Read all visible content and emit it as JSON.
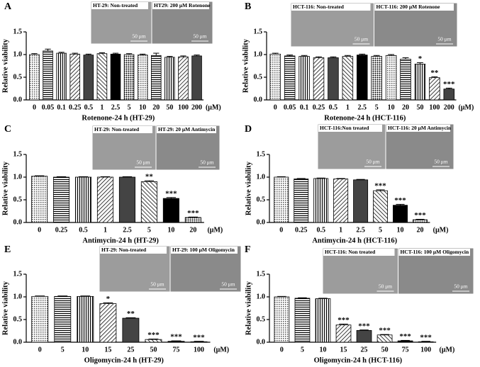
{
  "chart_data": [
    {
      "type": "bar",
      "label": "A",
      "xlabel": "Rotenone-24 h (HT-29)",
      "ylabel": "Relative viability",
      "x_unit": "(μM)",
      "categories": [
        "0",
        "0.05",
        "0.1",
        "0.25",
        "0.5",
        "1",
        "2.5",
        "5",
        "10",
        "20",
        "50",
        "100",
        "200"
      ],
      "values": [
        1.0,
        1.08,
        1.03,
        1.01,
        0.99,
        1.02,
        1.01,
        1.0,
        0.99,
        0.98,
        0.94,
        0.95,
        0.97
      ],
      "errors": [
        0.02,
        0.04,
        0.02,
        0.02,
        0.02,
        0.02,
        0.02,
        0.02,
        0.02,
        0.05,
        0.02,
        0.02,
        0.02
      ],
      "significance": [
        null,
        null,
        null,
        null,
        null,
        null,
        null,
        null,
        null,
        null,
        null,
        null,
        null
      ],
      "color": "#000000",
      "ylim": [
        0,
        1.5
      ],
      "yticks": [
        {
          "value": 0,
          "label": "0.0"
        },
        0.5,
        {
          "value": 1,
          "label": "1.0"
        },
        1.5
      ],
      "insets": [
        {
          "caption": "HT-29: Non-treated",
          "scale": "50 μm"
        },
        {
          "caption": "HT29: 200 μM Rotenone",
          "scale": "50 μm"
        }
      ]
    },
    {
      "type": "bar",
      "label": "B",
      "xlabel": "Rotenone-24 h (HCT-116)",
      "ylabel": "Relative viability",
      "x_unit": "(μM)",
      "categories": [
        "0",
        "0.05",
        "0.1",
        "0.25",
        "0.5",
        "1",
        "2.5",
        "5",
        "10",
        "20",
        "50",
        "100",
        "200"
      ],
      "values": [
        1.01,
        0.97,
        0.96,
        0.93,
        0.93,
        0.96,
        0.99,
        0.96,
        0.98,
        0.9,
        0.79,
        0.49,
        0.24
      ],
      "errors": [
        0.02,
        0.02,
        0.02,
        0.02,
        0.02,
        0.02,
        0.02,
        0.02,
        0.02,
        0.03,
        0.03,
        0.02,
        0.02
      ],
      "significance": [
        null,
        null,
        null,
        null,
        null,
        null,
        null,
        null,
        null,
        null,
        "*",
        "**",
        "***"
      ],
      "color": "#000000",
      "ylim": [
        0,
        1.5
      ],
      "yticks": [
        {
          "value": 0,
          "label": "0.0"
        },
        0.5,
        {
          "value": 1,
          "label": "1.0"
        },
        1.5
      ],
      "insets": [
        {
          "caption": "HCT-116: Non-treated",
          "scale": "50 μm"
        },
        {
          "caption": "HCT-116: 200 μM Rotenone",
          "scale": "50 μm"
        }
      ]
    },
    {
      "type": "bar",
      "label": "C",
      "xlabel": "Antimycin-24 h (HT-29)",
      "ylabel": "Relative viability",
      "x_unit": "(μM)",
      "categories": [
        "0",
        "0.25",
        "0.5",
        "1",
        "2.5",
        "5",
        "10",
        "20"
      ],
      "values": [
        1.02,
        1.0,
        1.0,
        1.0,
        1.0,
        0.9,
        0.53,
        0.11
      ],
      "errors": [
        0.01,
        0.01,
        0.01,
        0.01,
        0.01,
        0.02,
        0.02,
        0.01
      ],
      "significance": [
        null,
        null,
        null,
        null,
        null,
        "**",
        "***",
        "***"
      ],
      "color": "#000000",
      "ylim": [
        0,
        1.5
      ],
      "yticks": [
        {
          "value": 0,
          "label": "0.0"
        },
        0.5,
        {
          "value": 1,
          "label": "1.0"
        },
        1.5
      ],
      "insets": [
        {
          "caption": "HT-29: Non-treated",
          "scale": "50 μm"
        },
        {
          "caption": "HT-29: 20 μM Antimycin",
          "scale": "50 μm"
        }
      ]
    },
    {
      "type": "bar",
      "label": "D",
      "xlabel": "Antimycin-24 h (HCT-116)",
      "ylabel": "Relative viability",
      "x_unit": "(μM)",
      "categories": [
        "0",
        "0.25",
        "0.5",
        "1",
        "2.5",
        "5",
        "10",
        "20"
      ],
      "values": [
        1.0,
        0.96,
        0.97,
        0.96,
        0.94,
        0.7,
        0.38,
        0.06
      ],
      "errors": [
        0.01,
        0.01,
        0.01,
        0.01,
        0.01,
        0.02,
        0.02,
        0.01
      ],
      "significance": [
        null,
        null,
        null,
        null,
        null,
        "***",
        "***",
        "***"
      ],
      "color": "#000000",
      "ylim": [
        0,
        1.5
      ],
      "yticks": [
        {
          "value": 0,
          "label": "0.0"
        },
        0.5,
        {
          "value": 1,
          "label": "1.0"
        },
        1.5
      ],
      "insets": [
        {
          "caption": "HCT-116:Non treated",
          "scale": "50 μm"
        },
        {
          "caption": "HCT-116: 20 μM Antimycin",
          "scale": "50 μm"
        }
      ]
    },
    {
      "type": "bar",
      "label": "E",
      "xlabel": "Oligomycin-24 h (HT-29)",
      "ylabel": "Relative viability",
      "x_unit": "(μM)",
      "categories": [
        "0",
        "5",
        "10",
        "15",
        "25",
        "50",
        "75",
        "100"
      ],
      "values": [
        1.01,
        1.01,
        1.01,
        0.85,
        0.53,
        0.06,
        0.02,
        0.01
      ],
      "errors": [
        0.01,
        0.01,
        0.01,
        0.02,
        0.01,
        0.01,
        0.01,
        0.01
      ],
      "significance": [
        null,
        null,
        null,
        "*",
        "**",
        "***",
        "***",
        "***"
      ],
      "color": "#000000",
      "ylim": [
        0,
        1.5
      ],
      "yticks": [
        {
          "value": 0,
          "label": "0.0"
        },
        0.5,
        {
          "value": 1,
          "label": "1.0"
        },
        1.5
      ],
      "insets": [
        {
          "caption": "HT-29: Non-treated",
          "scale": "50 μm"
        },
        {
          "caption": "HT-29: 100 μM Oligomycin",
          "scale": "50 μm"
        }
      ]
    },
    {
      "type": "bar",
      "label": "F",
      "xlabel": "Oligomycin-24 h (HCT-116)",
      "ylabel": "Relative viability",
      "x_unit": "(μM)",
      "categories": [
        "0",
        "5",
        "10",
        "15",
        "25",
        "50",
        "75",
        "100"
      ],
      "values": [
        1.0,
        0.97,
        0.96,
        0.38,
        0.26,
        0.16,
        0.03,
        0.01
      ],
      "errors": [
        0.01,
        0.01,
        0.01,
        0.02,
        0.01,
        0.01,
        0.01,
        0.01
      ],
      "significance": [
        null,
        null,
        null,
        "***",
        "***",
        "***",
        "***",
        "***"
      ],
      "color": "#000000",
      "ylim": [
        0,
        1.5
      ],
      "yticks": [
        {
          "value": 0,
          "label": "0.0"
        },
        0.5,
        {
          "value": 1,
          "label": "1.0"
        },
        1.5
      ],
      "insets": [
        {
          "caption": "HCT-116: Non treated",
          "scale": "50 μm"
        },
        {
          "caption": "HCT-116: 100 μM Oligomycin",
          "scale": "50 μm"
        }
      ]
    }
  ]
}
